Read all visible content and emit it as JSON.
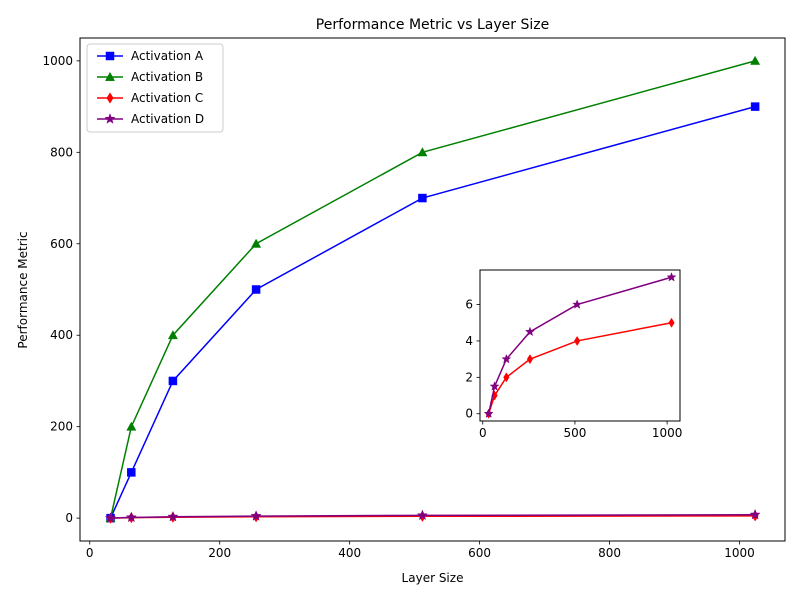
{
  "chart_data": [
    {
      "type": "line",
      "title": "Performance Metric vs Layer Size",
      "xlabel": "Layer Size",
      "ylabel": "Performance Metric",
      "xlim": [
        -15,
        1070
      ],
      "ylim": [
        -50,
        1050
      ],
      "xticks": [
        0,
        200,
        400,
        600,
        800,
        1000
      ],
      "yticks": [
        0,
        200,
        400,
        600,
        800,
        1000
      ],
      "grid": false,
      "legend_position": "upper-left",
      "x": [
        32,
        64,
        128,
        256,
        512,
        1024
      ],
      "series": [
        {
          "name": "Activation A",
          "values": [
            0,
            100,
            300,
            500,
            700,
            900
          ],
          "color": "#0000ff",
          "marker": "square"
        },
        {
          "name": "Activation B",
          "values": [
            0,
            200,
            400,
            600,
            800,
            1000
          ],
          "color": "#008000",
          "marker": "triangle"
        },
        {
          "name": "Activation C",
          "values": [
            0,
            1,
            2,
            3,
            4,
            5
          ],
          "color": "#ff0000",
          "marker": "diamond"
        },
        {
          "name": "Activation D",
          "values": [
            0,
            1.5,
            3,
            4.5,
            6,
            7.5
          ],
          "color": "#800080",
          "marker": "star"
        }
      ]
    },
    {
      "type": "line",
      "title": "",
      "xlabel": "",
      "ylabel": "",
      "xlim": [
        -15,
        1070
      ],
      "ylim": [
        -0.4,
        7.9
      ],
      "xticks": [
        0,
        500,
        1000
      ],
      "yticks": [
        0,
        2,
        4,
        6
      ],
      "grid": false,
      "x": [
        32,
        64,
        128,
        256,
        512,
        1024
      ],
      "series": [
        {
          "values": [
            0,
            1,
            2,
            3,
            4,
            5
          ],
          "color": "#ff0000",
          "marker": "diamond"
        },
        {
          "values": [
            0,
            1.5,
            3,
            4.5,
            6,
            7.5
          ],
          "color": "#800080",
          "marker": "star"
        }
      ]
    }
  ]
}
